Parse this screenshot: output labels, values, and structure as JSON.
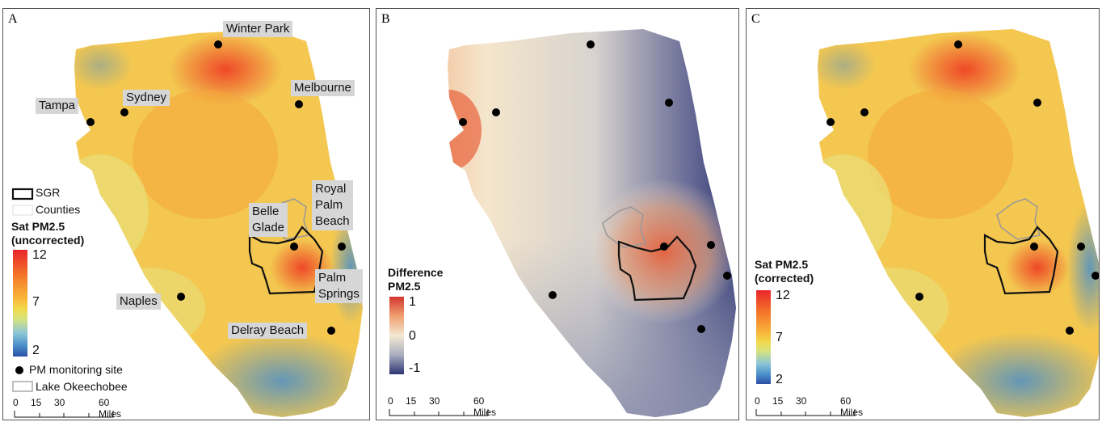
{
  "colors": {
    "ramp_sat": [
      "#e8262a",
      "#f47a2a",
      "#f9b53a",
      "#f2d84a",
      "#d6e27e",
      "#8cc7d6",
      "#4a8ec9",
      "#2b4fa5"
    ],
    "ramp_diff": [
      "#d2352f",
      "#f0a070",
      "#f4e8d2",
      "#a9aebf",
      "#2e3572"
    ],
    "land": "#f3c750",
    "water": "#ffffff"
  },
  "panels": {
    "a": {
      "label": "A",
      "cities": [
        {
          "name": "Winter Park"
        },
        {
          "name": "Sydney"
        },
        {
          "name": "Tampa"
        },
        {
          "name": "Melbourne"
        },
        {
          "name": "Belle\nGlade"
        },
        {
          "name": "Royal\nPalm\nBeach"
        },
        {
          "name": "Naples"
        },
        {
          "name": "Palm\nSprings"
        },
        {
          "name": "Delray Beach"
        }
      ],
      "legend": {
        "sgr": "SGR",
        "counties": "Counties",
        "title": "Sat PM2.5\n(uncorrected)",
        "max": "12",
        "mid": "7",
        "min": "2",
        "site": "PM monitoring site",
        "lake": "Lake Okeechobee"
      },
      "scale": {
        "t0": "0",
        "t1": "15",
        "t2": "30",
        "t3": "60 Miles"
      }
    },
    "b": {
      "label": "B",
      "legend": {
        "title": "Difference\nPM2.5",
        "max": "1",
        "mid": "0",
        "min": "-1"
      },
      "scale": {
        "t0": "0",
        "t1": "15",
        "t2": "30",
        "t3": "60 Miles"
      }
    },
    "c": {
      "label": "C",
      "legend": {
        "title": "Sat PM2.5\n(corrected)",
        "max": "12",
        "mid": "7",
        "min": "2"
      },
      "scale": {
        "t0": "0",
        "t1": "15",
        "t2": "30",
        "t3": "60 Miles"
      }
    }
  }
}
